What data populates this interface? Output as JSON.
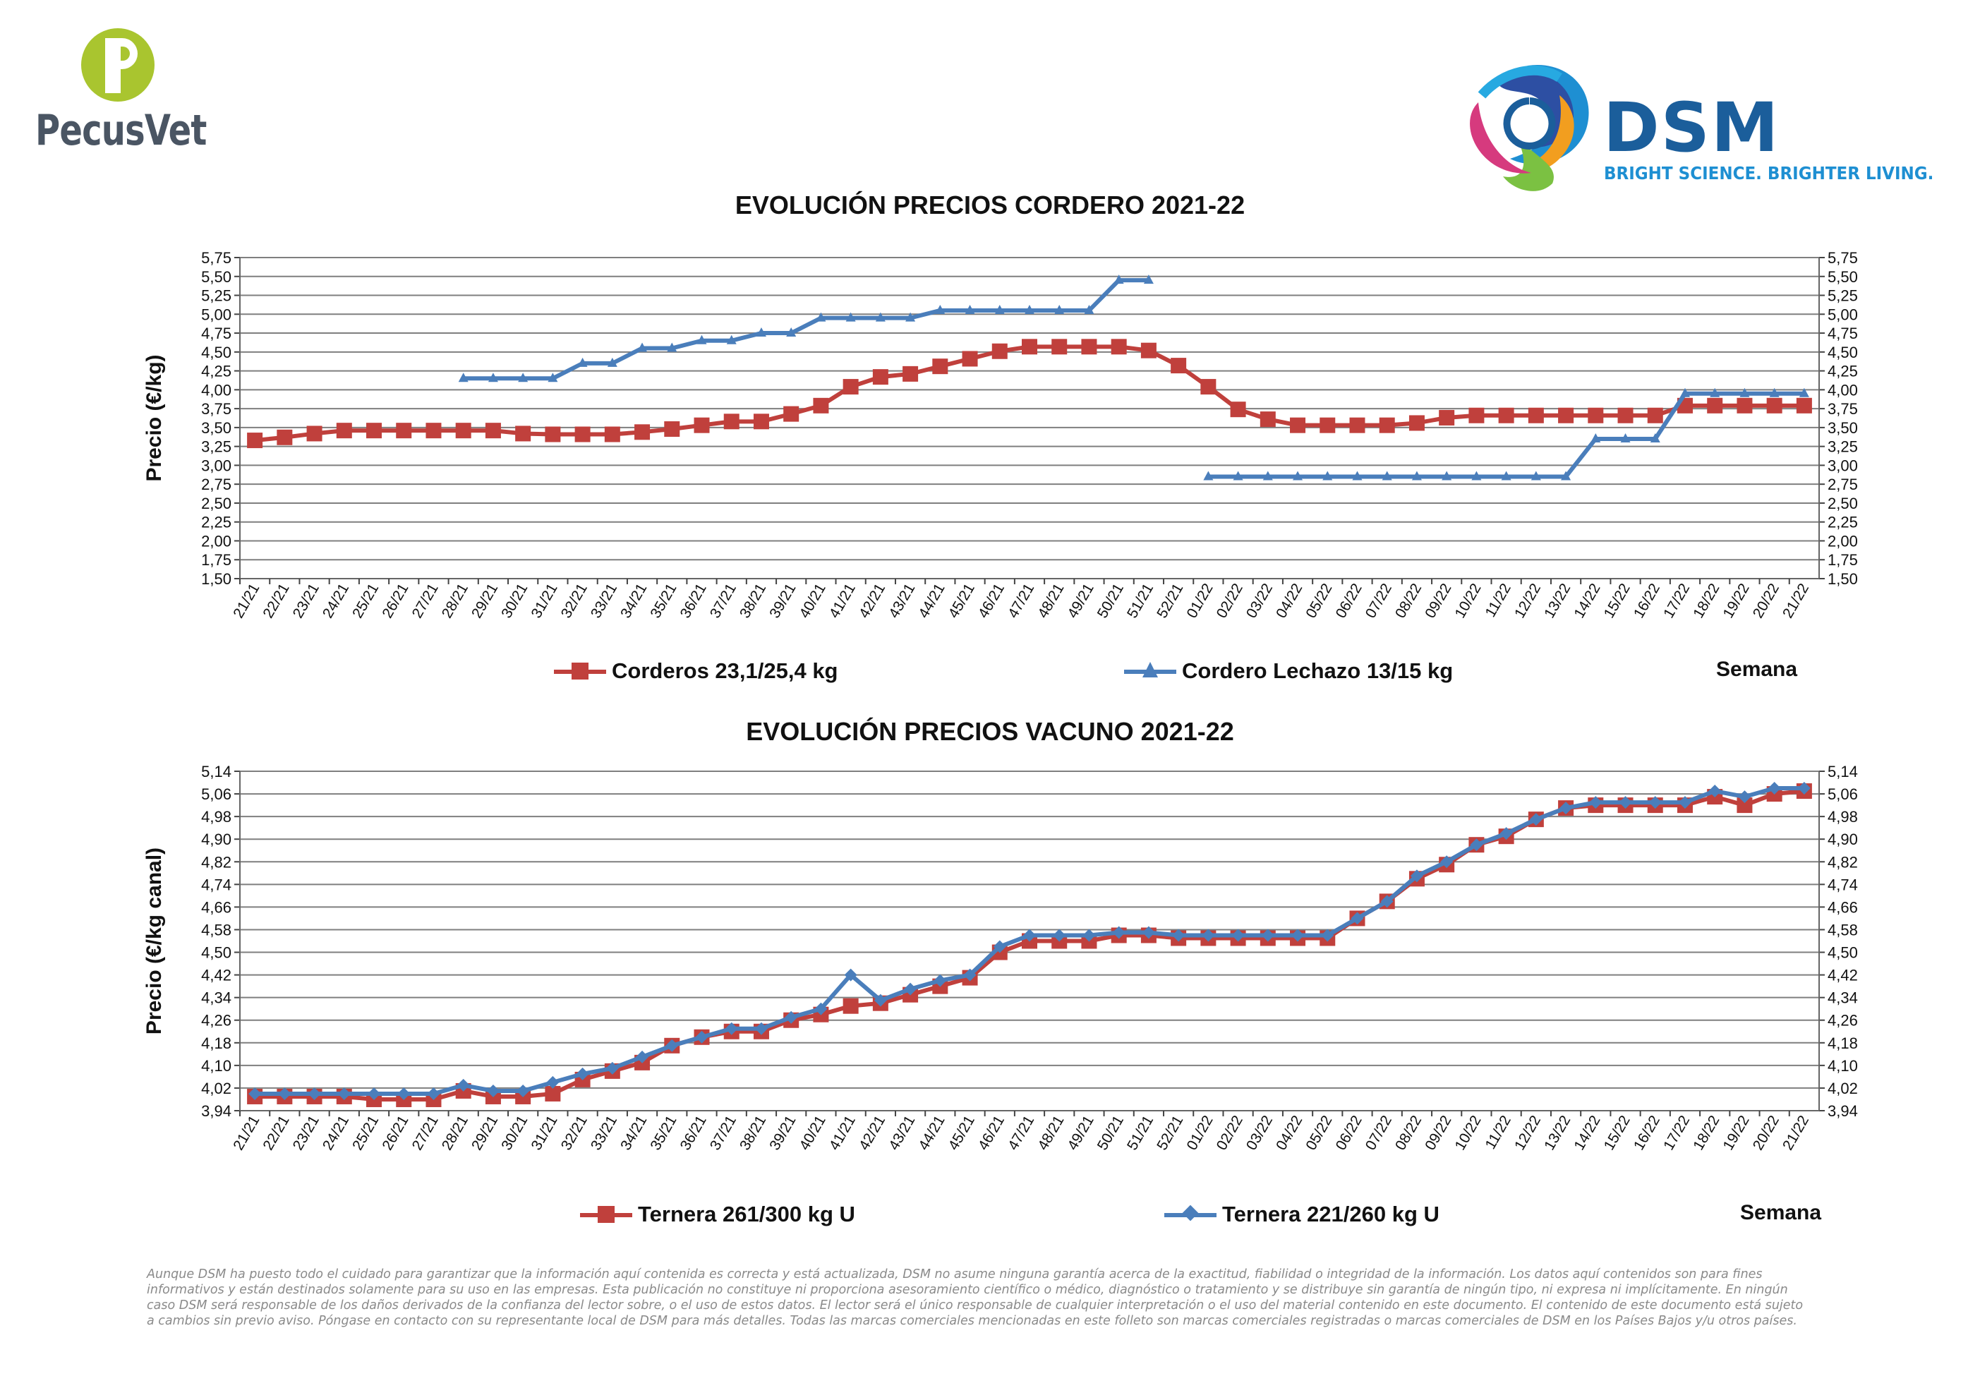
{
  "brand": {
    "left_logo_text": "PecusVet",
    "right_logo_text": "DSM",
    "right_logo_tagline": "BRIGHT SCIENCE. BRIGHTER LIVING."
  },
  "colors": {
    "red_series": "#C0403C",
    "blue_series": "#4A7EBB",
    "pecus_green": "#A9C52F",
    "pecus_text": "#4A5563",
    "dsm_blue": "#1B5E9B",
    "dsm_tagline": "#1E8FD2",
    "grid": "#7f7f7f"
  },
  "x_labels": [
    "21/21",
    "22/21",
    "23/21",
    "24/21",
    "25/21",
    "26/21",
    "27/21",
    "28/21",
    "29/21",
    "30/21",
    "31/21",
    "32/21",
    "33/21",
    "34/21",
    "35/21",
    "36/21",
    "37/21",
    "38/21",
    "39/21",
    "40/21",
    "41/21",
    "42/21",
    "43/21",
    "44/21",
    "45/21",
    "46/21",
    "47/21",
    "48/21",
    "49/21",
    "50/21",
    "51/21",
    "52/21",
    "01/22",
    "02/22",
    "03/22",
    "04/22",
    "05/22",
    "06/22",
    "07/22",
    "08/22",
    "09/22",
    "10/22",
    "11/22",
    "12/22",
    "13/22",
    "14/22",
    "15/22",
    "16/22",
    "17/22",
    "18/22",
    "19/22",
    "20/22",
    "21/22"
  ],
  "semana_label": "Semana",
  "disclaimer": "Aunque DSM ha puesto todo el cuidado para garantizar que la información aquí contenida es correcta y está actualizada, DSM no asume ninguna garantía acerca de la exactitud, fiabilidad o integridad de la información. Los datos aquí contenidos son para fines informativos y están destinados solamente para su uso en las empresas. Esta publicación no constituye ni proporciona asesoramiento científico o médico, diagnóstico o tratamiento y se distribuye sin garantía de ningún tipo, ni expresa ni implícitamente. En ningún caso DSM será responsable de los daños derivados de la confianza del lector sobre, o el uso de estos datos. El lector será el único responsable de cualquier interpretación o el uso del material contenido en este documento. El contenido de este documento está sujeto a cambios sin previo aviso. Póngase en contacto con su representante local de DSM para más detalles. Todas las marcas comerciales mencionadas en este folleto son marcas comerciales registradas o marcas comerciales de DSM en los Países Bajos y/u otros países.",
  "chart_data": [
    {
      "id": "cordero",
      "type": "line",
      "title": "EVOLUCIÓN PRECIOS CORDERO 2021-22",
      "ylabel": "Precio (€/kg)",
      "xlabel": "Semana",
      "ylim": [
        1.5,
        5.75
      ],
      "yticks": [
        "1,50",
        "1,75",
        "2,00",
        "2,25",
        "2,50",
        "2,75",
        "3,00",
        "3,25",
        "3,50",
        "3,75",
        "4,00",
        "4,25",
        "4,50",
        "4,75",
        "5,00",
        "5,25",
        "5,50",
        "5,75"
      ],
      "grid": true,
      "legend_position": "bottom",
      "series": [
        {
          "name": "Corderos 23,1/25,4 kg",
          "color": "#C0403C",
          "marker": "square",
          "values": [
            3.33,
            3.37,
            3.42,
            3.46,
            3.46,
            3.46,
            3.46,
            3.46,
            3.46,
            3.42,
            3.41,
            3.41,
            3.41,
            3.44,
            3.48,
            3.53,
            3.58,
            3.58,
            3.68,
            3.79,
            4.04,
            4.17,
            4.21,
            4.31,
            4.41,
            4.51,
            4.57,
            4.57,
            4.57,
            4.57,
            4.52,
            4.32,
            4.04,
            3.74,
            3.61,
            3.53,
            3.53,
            3.53,
            3.53,
            3.56,
            3.63,
            3.66,
            3.66,
            3.66,
            3.66,
            3.66,
            3.66,
            3.66,
            3.79,
            3.79,
            3.79,
            3.79,
            3.79
          ]
        },
        {
          "name": "Cordero Lechazo 13/15 kg",
          "color": "#4A7EBB",
          "marker": "triangle",
          "values": [
            null,
            null,
            null,
            null,
            null,
            null,
            null,
            4.15,
            4.15,
            4.15,
            4.15,
            4.35,
            4.35,
            4.55,
            4.55,
            4.65,
            4.65,
            4.75,
            4.75,
            4.95,
            4.95,
            4.95,
            4.95,
            5.05,
            5.05,
            5.05,
            5.05,
            5.05,
            5.05,
            5.45,
            5.45,
            null,
            2.85,
            2.85,
            2.85,
            2.85,
            2.85,
            2.85,
            2.85,
            2.85,
            2.85,
            2.85,
            2.85,
            2.85,
            2.85,
            3.35,
            3.35,
            3.35,
            3.95,
            3.95,
            3.95,
            3.95,
            3.95
          ]
        }
      ]
    },
    {
      "id": "vacuno",
      "type": "line",
      "title": "EVOLUCIÓN PRECIOS VACUNO 2021-22",
      "ylabel": "Precio (€/kg canal)",
      "xlabel": "Semana",
      "ylim": [
        3.94,
        5.14
      ],
      "yticks": [
        "3,94",
        "4,02",
        "4,10",
        "4,18",
        "4,26",
        "4,34",
        "4,42",
        "4,50",
        "4,58",
        "4,66",
        "4,74",
        "4,82",
        "4,90",
        "4,98",
        "5,06",
        "5,14"
      ],
      "grid": true,
      "legend_position": "bottom",
      "series": [
        {
          "name": "Ternera 261/300 kg U",
          "color": "#C0403C",
          "marker": "square",
          "values": [
            3.99,
            3.99,
            3.99,
            3.99,
            3.98,
            3.98,
            3.98,
            4.01,
            3.99,
            3.99,
            4.0,
            4.05,
            4.08,
            4.11,
            4.17,
            4.2,
            4.22,
            4.22,
            4.26,
            4.28,
            4.31,
            4.32,
            4.35,
            4.38,
            4.41,
            4.5,
            4.54,
            4.54,
            4.54,
            4.56,
            4.56,
            4.55,
            4.55,
            4.55,
            4.55,
            4.55,
            4.55,
            4.62,
            4.68,
            4.76,
            4.81,
            4.88,
            4.91,
            4.97,
            5.01,
            5.02,
            5.02,
            5.02,
            5.02,
            5.05,
            5.02,
            5.06,
            5.07
          ]
        },
        {
          "name": "Ternera 221/260 kg U",
          "color": "#4A7EBB",
          "marker": "diamond",
          "values": [
            4.0,
            4.0,
            4.0,
            4.0,
            4.0,
            4.0,
            4.0,
            4.03,
            4.01,
            4.01,
            4.04,
            4.07,
            4.09,
            4.13,
            4.17,
            4.2,
            4.23,
            4.23,
            4.27,
            4.3,
            4.42,
            4.33,
            4.37,
            4.4,
            4.42,
            4.52,
            4.56,
            4.56,
            4.56,
            4.57,
            4.57,
            4.56,
            4.56,
            4.56,
            4.56,
            4.56,
            4.56,
            4.62,
            4.68,
            4.77,
            4.82,
            4.88,
            4.92,
            4.97,
            5.01,
            5.03,
            5.03,
            5.03,
            5.03,
            5.07,
            5.05,
            5.08,
            5.08
          ]
        }
      ]
    }
  ]
}
